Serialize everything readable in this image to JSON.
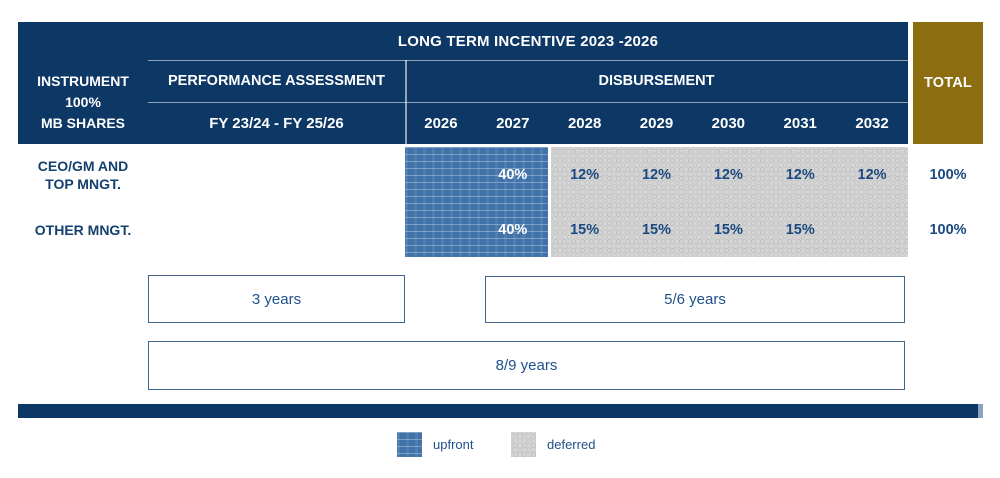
{
  "table": {
    "title": "LONG TERM INCENTIVE 2023 -2026",
    "instrument_header": {
      "line1": "INSTRUMENT",
      "line2": "100%",
      "line3": "MB SHARES"
    },
    "performance_header": "PERFORMANCE ASSESSMENT",
    "performance_period": "FY 23/24 - FY 25/26",
    "disbursement_header": "DISBURSEMENT",
    "years": [
      "2026",
      "2027",
      "2028",
      "2029",
      "2030",
      "2031",
      "2032"
    ],
    "total_header": "TOTAL",
    "rows": [
      {
        "label_line1": "CEO/GM AND",
        "label_line2": "TOP MNGT.",
        "upfront": "40%",
        "deferred": [
          "12%",
          "12%",
          "12%",
          "12%",
          "12%"
        ],
        "total": "100%"
      },
      {
        "label_line1": "OTHER MNGT.",
        "upfront": "40%",
        "deferred": [
          "15%",
          "15%",
          "15%",
          "15%",
          ""
        ],
        "total": "100%"
      }
    ]
  },
  "timeline": {
    "performance_box": "3 years",
    "deferral_box": "5/6 years",
    "overall_box": "8/9 years"
  },
  "legend": {
    "upfront_label": "upfront",
    "deferred_label": "deferred"
  },
  "colors": {
    "navy": "#0d3765",
    "gold": "#8c6d0f",
    "upfront_blue": "#4173aa",
    "deferred_gray": "#d5d5d5",
    "text_navy": "#14406e",
    "percent_navy": "#1a4a80"
  }
}
